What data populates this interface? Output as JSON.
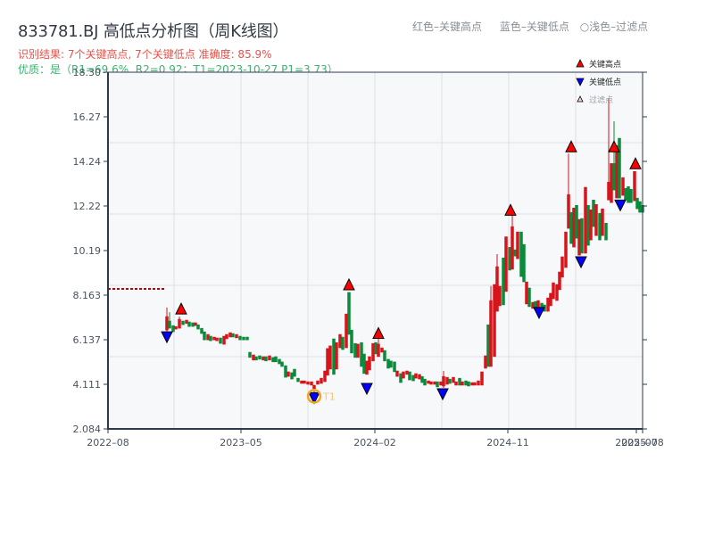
{
  "header": {
    "title": "833781.BJ 高低点分析图（周K线图）",
    "result_line": "识别结果: 7个关键高点, 7个关键低点  准确度: 85.9%",
    "quality_line": "优质：是（R1=69.6%, R2=0.92；T1=2023-10-27 P1=3.73）"
  },
  "top_legend": {
    "red": "红色–关键高点",
    "blue": "蓝色–关键低点",
    "light": "○浅色–过滤点"
  },
  "legend": {
    "items": [
      {
        "label": "关键高点",
        "color": "#ff0000",
        "shape": "triangle-up"
      },
      {
        "label": "关键低点",
        "color": "#0000ff",
        "shape": "triangle-down"
      },
      {
        "label": "过滤点",
        "color": "#ffcccc",
        "shape": "triangle-up-small"
      }
    ]
  },
  "colors": {
    "up": "#d7141a",
    "down": "#0a8a3a",
    "axis": "#2d3a4a",
    "grid": "#dde1e6",
    "plot_bg": "#f6f8fa",
    "ref_line": "#c00000",
    "t1_circle": "#f5a623",
    "t1_label": "#f5c77e"
  },
  "chart_data": {
    "type": "candlestick",
    "title": "833781.BJ 高低点分析图（周K线图）",
    "xlabel": "",
    "ylabel": "",
    "ylim": [
      2.084,
      18.3
    ],
    "y_ticks": [
      "2.084",
      "4.111",
      "6.137",
      "8.163",
      "10.19",
      "12.22",
      "14.24",
      "16.27",
      "18.30"
    ],
    "x_ticks": [
      {
        "label": "2022–08",
        "x": 121
      },
      {
        "label": "2023–05",
        "x": 270
      },
      {
        "label": "2024–02",
        "x": 420
      },
      {
        "label": "2024–11",
        "x": 569
      },
      {
        "label": "2025–07",
        "x": 713
      },
      {
        "label": "2025–08",
        "x": 720
      }
    ],
    "grid": true,
    "reference_line": {
      "price": 8.45,
      "x_from": 121,
      "x_to": 186,
      "style": "dotted"
    },
    "candles_format": "[x_px, open, close, high, low]",
    "candles": [
      [
        187,
        6.58,
        7.19,
        7.6,
        6.5
      ],
      [
        190,
        6.99,
        6.66,
        7.39,
        6.66
      ],
      [
        194,
        6.78,
        6.5,
        6.78,
        6.5
      ],
      [
        197,
        6.62,
        6.74,
        6.74,
        6.62
      ],
      [
        201,
        6.66,
        7.07,
        7.19,
        6.66
      ],
      [
        205,
        6.99,
        6.82,
        6.99,
        6.82
      ],
      [
        209,
        6.87,
        7.03,
        7.03,
        6.87
      ],
      [
        212,
        6.95,
        6.74,
        6.95,
        6.74
      ],
      [
        216,
        6.91,
        6.74,
        6.91,
        6.74
      ],
      [
        219,
        6.78,
        6.91,
        6.91,
        6.78
      ],
      [
        222,
        6.82,
        6.62,
        6.82,
        6.62
      ],
      [
        226,
        6.66,
        6.42,
        6.66,
        6.42
      ],
      [
        229,
        6.5,
        6.13,
        6.5,
        6.13
      ],
      [
        233,
        6.13,
        6.38,
        6.38,
        6.13
      ],
      [
        236,
        6.3,
        6.09,
        6.3,
        6.09
      ],
      [
        240,
        6.13,
        6.26,
        6.26,
        6.13
      ],
      [
        243,
        6.09,
        6.22,
        6.22,
        6.09
      ],
      [
        247,
        6.22,
        5.97,
        6.22,
        5.97
      ],
      [
        251,
        5.93,
        6.3,
        6.3,
        5.93
      ],
      [
        254,
        6.18,
        6.38,
        6.38,
        6.18
      ],
      [
        258,
        6.26,
        6.46,
        6.46,
        6.26
      ],
      [
        261,
        6.42,
        6.26,
        6.42,
        6.26
      ],
      [
        265,
        6.22,
        6.38,
        6.38,
        6.22
      ],
      [
        269,
        6.3,
        6.13,
        6.3,
        6.13
      ],
      [
        273,
        6.26,
        6.13,
        6.26,
        6.13
      ],
      [
        277,
        6.26,
        6.13,
        6.26,
        6.13
      ],
      [
        280,
        5.57,
        5.33,
        5.57,
        5.33
      ],
      [
        284,
        5.21,
        5.45,
        5.45,
        5.21
      ],
      [
        287,
        5.37,
        5.21,
        5.37,
        5.21
      ],
      [
        291,
        5.41,
        5.25,
        5.41,
        5.25
      ],
      [
        295,
        5.21,
        5.37,
        5.37,
        5.21
      ],
      [
        298,
        5.37,
        5.17,
        5.37,
        5.17
      ],
      [
        302,
        5.21,
        5.41,
        5.41,
        5.21
      ],
      [
        306,
        5.33,
        5.13,
        5.33,
        5.13
      ],
      [
        309,
        5.37,
        5.13,
        5.37,
        5.13
      ],
      [
        313,
        5.25,
        5.04,
        5.25,
        5.04
      ],
      [
        316,
        5.13,
        4.92,
        5.13,
        4.92
      ],
      [
        320,
        4.96,
        4.43,
        4.96,
        4.43
      ],
      [
        323,
        4.47,
        4.68,
        4.68,
        4.47
      ],
      [
        327,
        4.64,
        4.35,
        4.64,
        4.35
      ],
      [
        330,
        4.8,
        4.47,
        4.8,
        4.47
      ],
      [
        334,
        4.39,
        4.23,
        4.39,
        4.23
      ],
      [
        338,
        4.15,
        4.27,
        4.27,
        4.15
      ],
      [
        341,
        4.15,
        4.27,
        4.27,
        4.15
      ],
      [
        345,
        4.11,
        4.23,
        4.23,
        4.11
      ],
      [
        349,
        4.07,
        4.23,
        4.23,
        4.07
      ],
      [
        352,
        3.91,
        4.07,
        4.07,
        3.73
      ],
      [
        356,
        4.11,
        4.27,
        4.27,
        4.11
      ],
      [
        360,
        4.15,
        4.39,
        4.39,
        4.15
      ],
      [
        364,
        4.23,
        4.72,
        4.72,
        4.23
      ],
      [
        367,
        4.52,
        5.74,
        5.74,
        4.52
      ],
      [
        370,
        4.8,
        5.86,
        5.86,
        4.8
      ],
      [
        374,
        6.18,
        4.56,
        6.18,
        4.56
      ],
      [
        377,
        4.8,
        6.01,
        6.01,
        4.8
      ],
      [
        381,
        5.77,
        6.38,
        6.38,
        5.77
      ],
      [
        384,
        6.26,
        5.69,
        6.26,
        5.69
      ],
      [
        388,
        5.77,
        7.31,
        7.31,
        5.77
      ],
      [
        391,
        8.29,
        6.38,
        8.29,
        6.38
      ],
      [
        394,
        6.58,
        5.53,
        6.58,
        5.53
      ],
      [
        398,
        5.97,
        5.33,
        5.97,
        5.33
      ],
      [
        401,
        5.33,
        5.94,
        5.94,
        5.33
      ],
      [
        405,
        6.01,
        4.92,
        6.01,
        4.92
      ],
      [
        408,
        5.49,
        4.6,
        5.49,
        4.6
      ],
      [
        411,
        4.56,
        5.17,
        5.17,
        4.56
      ],
      [
        414,
        4.76,
        5.37,
        5.37,
        4.76
      ],
      [
        418,
        5.17,
        5.97,
        5.97,
        5.17
      ],
      [
        421,
        6.01,
        5.49,
        6.01,
        5.49
      ],
      [
        424,
        5.37,
        5.94,
        6.2,
        5.37
      ],
      [
        428,
        5.57,
        5.77,
        5.77,
        5.57
      ],
      [
        431,
        5.65,
        5.17,
        5.65,
        5.17
      ],
      [
        435,
        5.25,
        4.84,
        5.25,
        4.84
      ],
      [
        438,
        5.17,
        4.88,
        5.17,
        4.88
      ],
      [
        442,
        5.13,
        4.68,
        5.13,
        4.68
      ],
      [
        445,
        4.47,
        4.72,
        4.72,
        4.47
      ],
      [
        449,
        4.6,
        4.19,
        4.6,
        4.19
      ],
      [
        452,
        4.39,
        4.68,
        4.68,
        4.39
      ],
      [
        456,
        4.56,
        4.72,
        4.72,
        4.56
      ],
      [
        459,
        4.68,
        4.31,
        4.68,
        4.31
      ],
      [
        463,
        4.52,
        4.27,
        4.52,
        4.27
      ],
      [
        466,
        4.39,
        4.6,
        4.6,
        4.39
      ],
      [
        470,
        4.35,
        4.56,
        4.56,
        4.35
      ],
      [
        473,
        4.47,
        4.19,
        4.47,
        4.19
      ],
      [
        476,
        4.35,
        4.07,
        4.35,
        4.07
      ],
      [
        480,
        4.15,
        4.27,
        4.27,
        4.15
      ],
      [
        483,
        4.11,
        4.23,
        4.23,
        4.11
      ],
      [
        487,
        4.11,
        4.23,
        4.23,
        4.11
      ],
      [
        490,
        4.23,
        3.99,
        4.23,
        3.99
      ],
      [
        494,
        4.07,
        4.23,
        4.23,
        4.07
      ],
      [
        497,
        4.03,
        4.47,
        4.72,
        3.95
      ],
      [
        501,
        4.11,
        4.43,
        4.43,
        4.11
      ],
      [
        504,
        4.35,
        4.15,
        4.35,
        4.15
      ],
      [
        508,
        4.19,
        4.43,
        4.43,
        4.19
      ],
      [
        511,
        4.07,
        4.23,
        4.23,
        4.07
      ],
      [
        515,
        4.39,
        4.07,
        4.39,
        4.07
      ],
      [
        518,
        4.07,
        4.23,
        4.23,
        4.07
      ],
      [
        522,
        4.27,
        4.07,
        4.27,
        4.07
      ],
      [
        525,
        4.23,
        4.03,
        4.23,
        4.03
      ],
      [
        529,
        4.07,
        4.19,
        4.19,
        4.07
      ],
      [
        532,
        4.07,
        4.19,
        4.19,
        4.07
      ],
      [
        536,
        4.07,
        4.27,
        4.27,
        4.07
      ],
      [
        540,
        4.07,
        4.68,
        4.68,
        4.07
      ],
      [
        544,
        4.84,
        5.41,
        5.41,
        4.84
      ],
      [
        547,
        6.82,
        4.92,
        6.82,
        4.92
      ],
      [
        550,
        4.92,
        7.92,
        8.58,
        4.92
      ],
      [
        554,
        5.37,
        8.65,
        8.65,
        5.37
      ],
      [
        557,
        7.43,
        9.46,
        10.03,
        7.43
      ],
      [
        560,
        7.68,
        8.57,
        8.57,
        7.68
      ],
      [
        564,
        9.86,
        7.72,
        9.86,
        7.72
      ],
      [
        567,
        8.33,
        10.82,
        10.82,
        8.33
      ],
      [
        571,
        10.34,
        9.3,
        10.34,
        9.3
      ],
      [
        574,
        9.34,
        11.28,
        11.8,
        9.34
      ],
      [
        577,
        10.23,
        9.94,
        10.23,
        9.94
      ],
      [
        580,
        9.82,
        11.04,
        11.04,
        9.82
      ],
      [
        584,
        11.04,
        9.01,
        11.04,
        9.01
      ],
      [
        587,
        10.47,
        8.77,
        10.47,
        8.77
      ],
      [
        590,
        7.76,
        8.77,
        8.77,
        7.76
      ],
      [
        593,
        8.49,
        7.64,
        8.49,
        7.64
      ],
      [
        597,
        7.56,
        7.84,
        7.84,
        7.56
      ],
      [
        600,
        7.88,
        7.52,
        7.88,
        7.52
      ],
      [
        603,
        7.35,
        7.92,
        7.92,
        7.23
      ],
      [
        607,
        7.8,
        7.43,
        7.8,
        7.43
      ],
      [
        610,
        7.72,
        7.43,
        7.72,
        7.43
      ],
      [
        614,
        7.43,
        8.04,
        8.04,
        7.43
      ],
      [
        617,
        7.68,
        8.25,
        8.25,
        7.68
      ],
      [
        620,
        8.0,
        8.73,
        8.73,
        8.0
      ],
      [
        624,
        7.92,
        8.65,
        8.65,
        7.92
      ],
      [
        627,
        8.41,
        9.22,
        9.22,
        8.41
      ],
      [
        630,
        8.98,
        9.91,
        9.91,
        8.98
      ],
      [
        634,
        9.42,
        11.04,
        11.04,
        9.42
      ],
      [
        637,
        11.2,
        12.74,
        14.6,
        11.2
      ],
      [
        640,
        11.93,
        10.51,
        11.93,
        10.51
      ],
      [
        643,
        10.35,
        12.13,
        12.13,
        10.35
      ],
      [
        646,
        12.25,
        10.75,
        12.25,
        10.75
      ],
      [
        649,
        9.98,
        11.61,
        11.61,
        9.98
      ],
      [
        652,
        11.65,
        10.07,
        11.65,
        10.07
      ],
      [
        656,
        10.07,
        13.07,
        13.07,
        10.07
      ],
      [
        659,
        12.25,
        10.43,
        12.25,
        10.43
      ],
      [
        662,
        10.67,
        12.05,
        12.05,
        10.67
      ],
      [
        665,
        12.49,
        11.28,
        12.49,
        11.28
      ],
      [
        668,
        10.87,
        12.29,
        12.29,
        10.87
      ],
      [
        672,
        11.89,
        10.67,
        11.89,
        10.67
      ],
      [
        675,
        10.87,
        12.09,
        12.09,
        10.87
      ],
      [
        679,
        11.44,
        10.67,
        11.44,
        10.67
      ],
      [
        682,
        12.49,
        13.3,
        17.12,
        12.49
      ],
      [
        685,
        12.37,
        14.15,
        14.15,
        12.37
      ],
      [
        688,
        14.15,
        12.94,
        16.07,
        12.94
      ],
      [
        691,
        12.58,
        14.97,
        14.97,
        12.58
      ],
      [
        694,
        15.3,
        12.58,
        15.3,
        12.58
      ],
      [
        698,
        12.7,
        13.51,
        13.51,
        12.7
      ],
      [
        701,
        13.02,
        12.49,
        13.02,
        12.49
      ],
      [
        704,
        13.1,
        12.37,
        13.1,
        12.37
      ],
      [
        707,
        12.98,
        12.37,
        12.98,
        12.37
      ],
      [
        711,
        12.45,
        13.79,
        13.79,
        12.45
      ],
      [
        714,
        12.58,
        12.09,
        12.58,
        12.09
      ],
      [
        717,
        12.42,
        11.93,
        12.42,
        11.93
      ],
      [
        720,
        12.25,
        11.93,
        12.25,
        11.93
      ]
    ],
    "key_highs": [
      {
        "x": 203,
        "price": 7.31
      },
      {
        "x": 391,
        "price": 8.41
      },
      {
        "x": 424,
        "price": 6.2
      },
      {
        "x": 572,
        "price": 11.8
      },
      {
        "x": 640,
        "price": 14.68
      },
      {
        "x": 688,
        "price": 14.68
      },
      {
        "x": 712,
        "price": 13.91
      }
    ],
    "key_lows": [
      {
        "x": 187,
        "price": 6.5
      },
      {
        "x": 352,
        "price": 3.73
      },
      {
        "x": 411,
        "price": 4.15
      },
      {
        "x": 496,
        "price": 3.91
      },
      {
        "x": 604,
        "price": 7.6
      },
      {
        "x": 651,
        "price": 9.91
      },
      {
        "x": 695,
        "price": 12.49
      }
    ],
    "annotations": [
      {
        "label": "T1",
        "x": 352,
        "price": 3.73,
        "date": "2023-10-27",
        "marker": "circle"
      }
    ]
  }
}
